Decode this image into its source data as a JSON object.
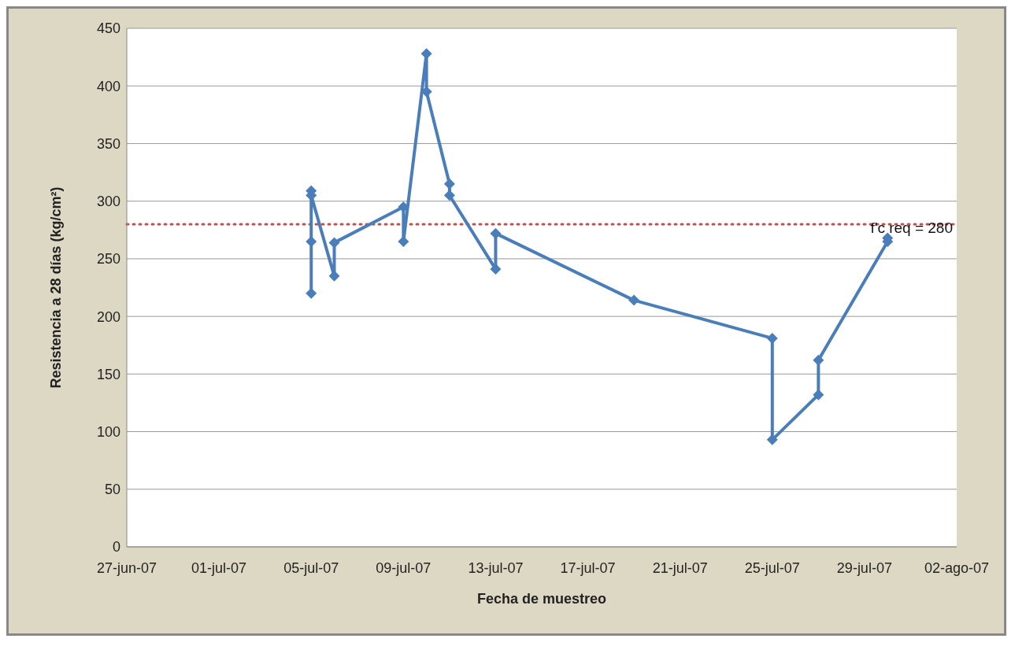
{
  "chart_data": {
    "type": "line",
    "xlabel": "Fecha de muestreo",
    "ylabel": "Resistencia a 28 días (kg/cm²)",
    "x": [
      "--07-05",
      "--07-05",
      "--07-05",
      "--07-05",
      "--07-06",
      "--07-06",
      "--07-09",
      "--07-09",
      "--07-10",
      "--07-10",
      "--07-11",
      "--07-11",
      "--07-13",
      "--07-13",
      "--07-19",
      "--07-25",
      "--07-25",
      "--07-27",
      "--07-27",
      "--07-30",
      "--07-30"
    ],
    "series": [
      {
        "color": "#4a7ebb",
        "values": [
          220,
          265,
          309,
          305,
          235,
          264,
          295,
          265,
          428,
          395,
          315,
          305,
          241,
          272,
          214,
          181,
          93,
          132,
          162,
          265,
          268
        ]
      }
    ],
    "xlim": [
      "--06-27",
      "--08-02"
    ],
    "xticks": [
      {
        "value": "--06-27",
        "label": "27-jun-07"
      },
      {
        "value": "--07-01",
        "label": "01-jul-07"
      },
      {
        "value": "--07-05",
        "label": "05-jul-07"
      },
      {
        "value": "--07-09",
        "label": "09-jul-07"
      },
      {
        "value": "--07-13",
        "label": "13-jul-07"
      },
      {
        "value": "--07-17",
        "label": "17-jul-07"
      },
      {
        "value": "--07-21",
        "label": "21-jul-07"
      },
      {
        "value": "--07-25",
        "label": "25-jul-07"
      },
      {
        "value": "--07-29",
        "label": "29-jul-07"
      },
      {
        "value": "--08-02",
        "label": "02-ago-07"
      }
    ],
    "ylim": [
      0,
      450
    ],
    "yticks": [
      0,
      50,
      100,
      150,
      200,
      250,
      300,
      350,
      400,
      450
    ],
    "ref_lines": [
      {
        "axis": "y",
        "value": 280,
        "label": "f'c req = 280",
        "color": "#c0504d",
        "line_style": "dotted"
      }
    ],
    "grid": "y",
    "marker": "diamond",
    "line_style": "solid",
    "legend": false
  }
}
